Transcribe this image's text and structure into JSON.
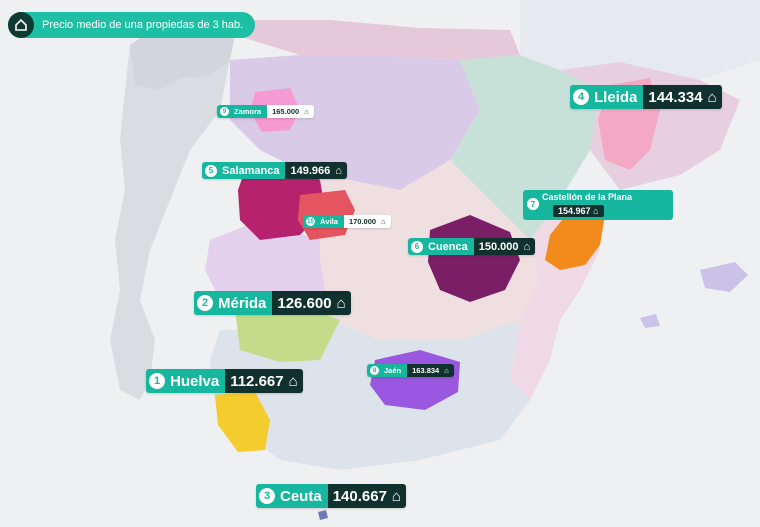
{
  "header": {
    "title": "Precio medio de una propiedas de 3 hab.",
    "icon": "house-icon"
  },
  "cities": [
    {
      "rank": "1",
      "name": "Huelva",
      "price": "112.667"
    },
    {
      "rank": "2",
      "name": "Mérida",
      "price": "126.600"
    },
    {
      "rank": "3",
      "name": "Ceuta",
      "price": "140.667"
    },
    {
      "rank": "4",
      "name": "Lleida",
      "price": "144.334"
    },
    {
      "rank": "5",
      "name": "Salamanca",
      "price": "149.966"
    },
    {
      "rank": "6",
      "name": "Cuenca",
      "price": "150.000"
    },
    {
      "rank": "7",
      "name": "Castellón de la Plana",
      "price": "154.967"
    },
    {
      "rank": "8",
      "name": "Jaén",
      "price": "163.834"
    },
    {
      "rank": "9",
      "name": "Zamora",
      "price": "165.000"
    },
    {
      "rank": "10",
      "name": "Ávila",
      "price": "170.000"
    }
  ],
  "colors": {
    "accent": "#17b79f",
    "dark": "#10312d",
    "sea": "#eef0f2",
    "portugal": "#d9dde2"
  }
}
